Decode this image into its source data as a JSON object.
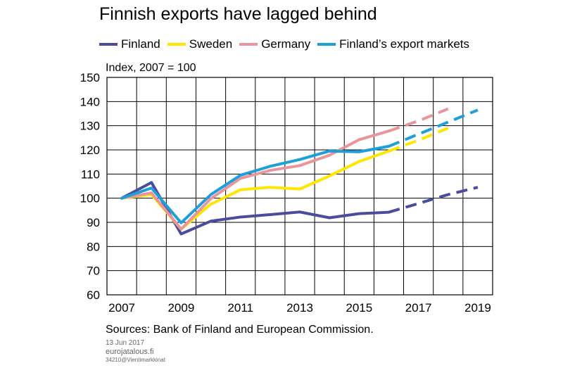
{
  "title": "Finnish exports have lagged behind",
  "unit_label": "Index, 2007 = 100",
  "source": "Sources: Bank of Finland and European Commission.",
  "footer": {
    "date": "13 Jun 2017",
    "site": "eurojatalous.fi",
    "code": "34210@Vientimarkkinat"
  },
  "chart_data": {
    "type": "line",
    "xlim": [
      2006.5,
      2019.5
    ],
    "ylim": [
      60,
      150
    ],
    "x_ticks": [
      "2007",
      "2009",
      "2011",
      "2013",
      "2015",
      "2017",
      "2019"
    ],
    "x_tick_values": [
      2007,
      2009,
      2011,
      2013,
      2015,
      2017,
      2019
    ],
    "y_ticks": [
      "60",
      "70",
      "80",
      "90",
      "100",
      "110",
      "120",
      "130",
      "140",
      "150"
    ],
    "y_tick_values": [
      60,
      70,
      80,
      90,
      100,
      110,
      120,
      130,
      140,
      150
    ],
    "grid": true,
    "legend_position": "top",
    "series": [
      {
        "name": "Finland",
        "color": "#4a4d9c",
        "actual_x": [
          2007,
          2008,
          2009,
          2010,
          2011,
          2012,
          2013,
          2014,
          2015,
          2016
        ],
        "actual_y": [
          100,
          106.5,
          85.2,
          90.5,
          92.2,
          93.2,
          94.3,
          91.9,
          93.6,
          94.2
        ],
        "forecast_x": [
          2016,
          2017,
          2018,
          2019
        ],
        "forecast_y": [
          94.2,
          97.8,
          101.5,
          104.5
        ]
      },
      {
        "name": "Sweden",
        "color": "#ffe600",
        "actual_x": [
          2007,
          2008,
          2009,
          2010,
          2011,
          2012,
          2013,
          2014,
          2015,
          2016
        ],
        "actual_y": [
          100,
          101.5,
          87.2,
          97.5,
          103.5,
          104.5,
          103.8,
          109.2,
          115.2,
          119.5
        ],
        "forecast_x": [
          2016,
          2017,
          2018
        ],
        "forecast_y": [
          119.5,
          124.0,
          129.0
        ]
      },
      {
        "name": "Germany",
        "color": "#e8959b",
        "actual_x": [
          2007,
          2008,
          2009,
          2010,
          2011,
          2012,
          2013,
          2014,
          2015,
          2016
        ],
        "actual_y": [
          100,
          102.2,
          87.2,
          99.8,
          108.2,
          111.5,
          113.5,
          117.8,
          124.2,
          127.8
        ],
        "forecast_x": [
          2016,
          2017,
          2018
        ],
        "forecast_y": [
          127.8,
          132.0,
          137.0
        ]
      },
      {
        "name": "Finland’s export markets",
        "color": "#1e9fda",
        "actual_x": [
          2007,
          2008,
          2009,
          2010,
          2011,
          2012,
          2013,
          2014,
          2015,
          2016
        ],
        "actual_y": [
          100,
          104.2,
          89.8,
          101.5,
          109.5,
          113.2,
          116.0,
          119.5,
          119.2,
          121.5
        ],
        "forecast_x": [
          2016,
          2017,
          2018,
          2019
        ],
        "forecast_y": [
          121.5,
          126.5,
          131.5,
          136.5
        ]
      }
    ]
  }
}
